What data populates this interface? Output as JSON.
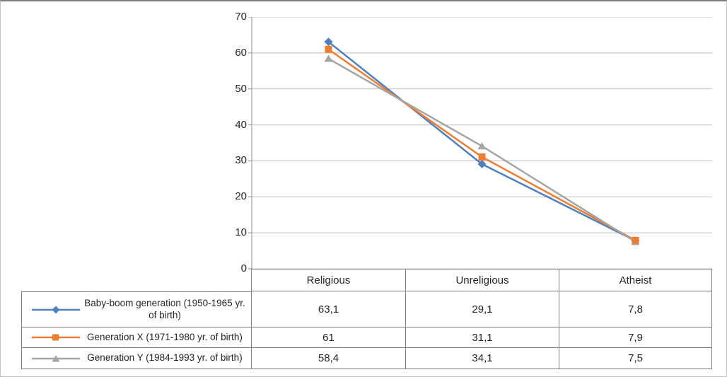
{
  "chart_data": {
    "type": "line",
    "title": "",
    "xlabel": "",
    "ylabel": "",
    "categories": [
      "Religious",
      "Unreligious",
      "Atheist"
    ],
    "series": [
      {
        "name": "Baby-boom generation (1950-1965 yr. of birth)",
        "values": [
          63.1,
          29.1,
          7.8
        ],
        "display": [
          "63,1",
          "29,1",
          "7,8"
        ],
        "color": "#4F81BD",
        "marker": "diamond"
      },
      {
        "name": "Generation X (1971-1980 yr. of birth)",
        "values": [
          61,
          31.1,
          7.9
        ],
        "display": [
          "61",
          "31,1",
          "7,9"
        ],
        "color": "#ED7D31",
        "marker": "square"
      },
      {
        "name": "Generation Y (1984-1993 yr. of birth)",
        "values": [
          58.4,
          34.1,
          7.5
        ],
        "display": [
          "58,4",
          "34,1",
          "7,5"
        ],
        "color": "#A5A5A5",
        "marker": "triangle"
      }
    ],
    "ylim": [
      0,
      70
    ],
    "ytick_step": 10,
    "yticks": [
      "70",
      "60",
      "50",
      "40",
      "30",
      "20",
      "10",
      "0"
    ],
    "gridlines": true,
    "legend_position": "table-left-column",
    "grid_color": "#BFBFBF",
    "axis_color": "#898989",
    "table_border_color": "#7F7F7F"
  }
}
